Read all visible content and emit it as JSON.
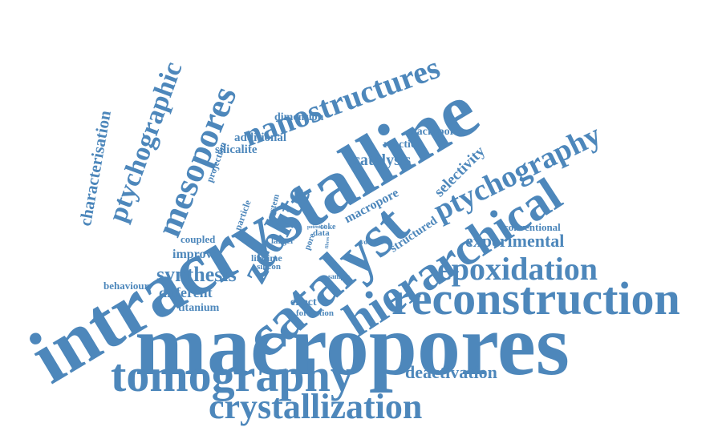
{
  "color": "#4d87bb",
  "words": [
    {
      "text": "macropores",
      "size": 108
    },
    {
      "text": "intracrystalline",
      "size": 96
    },
    {
      "text": "catalyst",
      "size": 74
    },
    {
      "text": "hierarchical",
      "size": 60
    },
    {
      "text": "reconstruction",
      "size": 58
    },
    {
      "text": "tomography",
      "size": 58
    },
    {
      "text": "zeolite",
      "size": 48
    },
    {
      "text": "crystallization",
      "size": 44
    },
    {
      "text": "mesopores",
      "size": 44
    },
    {
      "text": "epoxidation",
      "size": 40
    },
    {
      "text": "nanostructures",
      "size": 40
    },
    {
      "text": "ptychography",
      "size": 38
    },
    {
      "text": "ptychographic",
      "size": 34
    },
    {
      "text": "synthesis",
      "size": 26
    },
    {
      "text": "experimental",
      "size": 22
    },
    {
      "text": "deactivation",
      "size": 22
    },
    {
      "text": "characterisation",
      "size": 21
    },
    {
      "text": "catalysis",
      "size": 20
    },
    {
      "text": "selectivity",
      "size": 19
    },
    {
      "text": "different",
      "size": 18
    },
    {
      "text": "improve",
      "size": 16
    },
    {
      "text": "macropore",
      "size": 16
    },
    {
      "text": "structured",
      "size": 15
    },
    {
      "text": "additional",
      "size": 15
    },
    {
      "text": "silicalite",
      "size": 15
    },
    {
      "text": "dimension",
      "size": 14
    },
    {
      "text": "macroporous",
      "size": 14
    },
    {
      "text": "reaction",
      "size": 14
    },
    {
      "text": "titanium",
      "size": 14
    },
    {
      "text": "effect",
      "size": 14
    },
    {
      "text": "conventional",
      "size": 13
    },
    {
      "text": "coupled",
      "size": 13
    },
    {
      "text": "behaviour",
      "size": 13
    },
    {
      "text": "projection",
      "size": 12
    },
    {
      "text": "particle",
      "size": 12
    },
    {
      "text": "system",
      "size": 11
    },
    {
      "text": "lifetime",
      "size": 12
    },
    {
      "text": "silicon",
      "size": 11
    },
    {
      "text": "formation",
      "size": 11
    },
    {
      "text": "larger",
      "size": 11
    },
    {
      "text": "pore",
      "size": 11
    },
    {
      "text": "data",
      "size": 11
    },
    {
      "text": "coke",
      "size": 10
    },
    {
      "text": "volume",
      "size": 9
    },
    {
      "text": "sample",
      "size": 9
    },
    {
      "text": "potential",
      "size": 6
    },
    {
      "text": "fibres",
      "size": 6
    }
  ]
}
